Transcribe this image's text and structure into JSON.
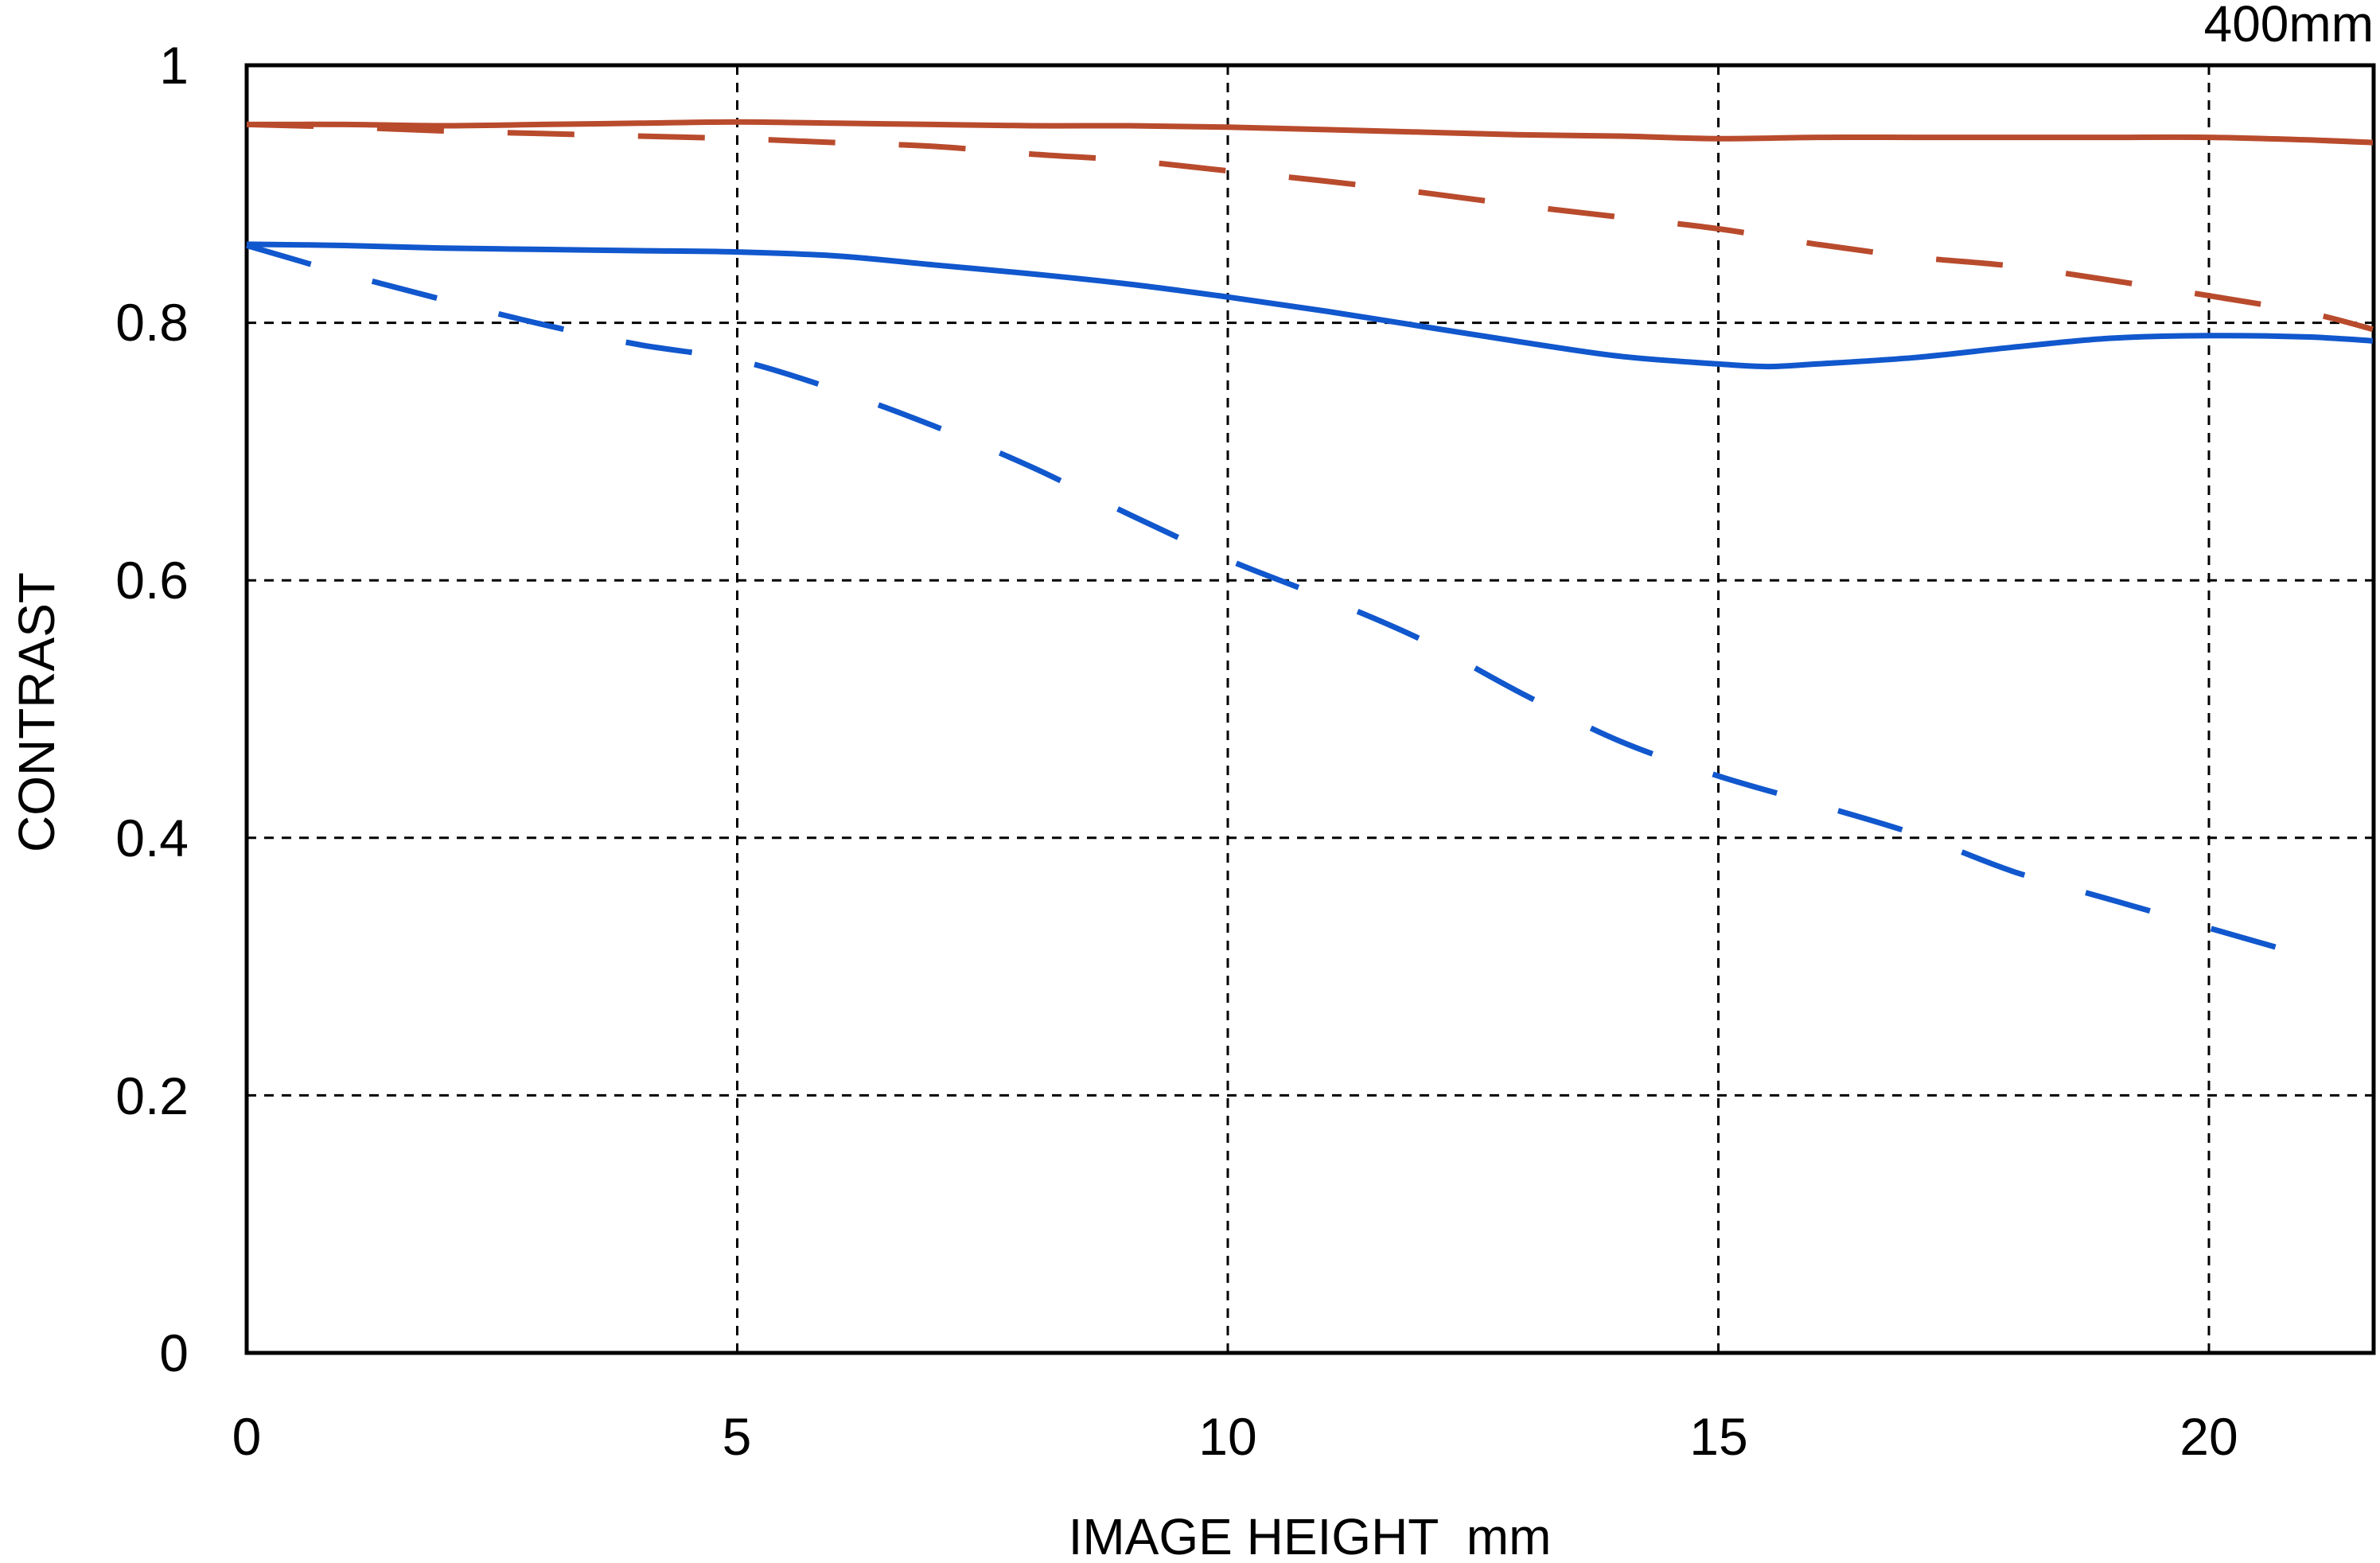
{
  "title": "400mm",
  "axes": {
    "x_label": "IMAGE HEIGHT  mm",
    "y_label": "CONTRAST",
    "x_tick_labels": [
      "0",
      "5",
      "10",
      "15",
      "20"
    ],
    "y_tick_labels": [
      "1",
      "0.8",
      "0.6",
      "0.4",
      "0.2",
      "0"
    ]
  },
  "colors": {
    "red_curve": "#b94b2d",
    "blue_curve": "#1157cd",
    "grid": "#000000",
    "frame": "#000000"
  },
  "chart_data": {
    "type": "line",
    "title": "400mm",
    "xlabel": "IMAGE HEIGHT  mm",
    "ylabel": "CONTRAST",
    "xlim": [
      0,
      21.67
    ],
    "ylim": [
      0,
      1
    ],
    "x_ticks": [
      0,
      5,
      10,
      15,
      20
    ],
    "y_ticks": [
      0,
      0.2,
      0.4,
      0.6,
      0.8,
      1
    ],
    "x_gridlines": [
      5,
      10,
      15,
      20
    ],
    "y_gridlines": [
      0.2,
      0.4,
      0.6,
      0.8
    ],
    "grid": "dashed",
    "legend": "none",
    "series": [
      {
        "id": "red-solid",
        "name": "red solid",
        "color": "#b94b2d",
        "dashed": false,
        "points": [
          [
            0,
            0.954
          ],
          [
            1,
            0.954
          ],
          [
            2,
            0.953
          ],
          [
            3,
            0.954
          ],
          [
            4,
            0.955
          ],
          [
            5,
            0.956
          ],
          [
            6,
            0.955
          ],
          [
            7,
            0.954
          ],
          [
            8,
            0.953
          ],
          [
            9,
            0.953
          ],
          [
            10,
            0.952
          ],
          [
            11,
            0.95
          ],
          [
            12,
            0.948
          ],
          [
            13,
            0.946
          ],
          [
            14,
            0.945
          ],
          [
            15,
            0.943
          ],
          [
            16,
            0.944
          ],
          [
            17,
            0.944
          ],
          [
            18,
            0.944
          ],
          [
            19,
            0.944
          ],
          [
            20,
            0.944
          ],
          [
            21,
            0.942
          ],
          [
            21.67,
            0.94
          ]
        ]
      },
      {
        "id": "red-dashed",
        "name": "red dashed",
        "color": "#b94b2d",
        "dashed": true,
        "points": [
          [
            0,
            0.954
          ],
          [
            1,
            0.952
          ],
          [
            2,
            0.949
          ],
          [
            3,
            0.947
          ],
          [
            4,
            0.945
          ],
          [
            5,
            0.943
          ],
          [
            6,
            0.94
          ],
          [
            7,
            0.937
          ],
          [
            8,
            0.931
          ],
          [
            9,
            0.926
          ],
          [
            10,
            0.918
          ],
          [
            11,
            0.91
          ],
          [
            12,
            0.901
          ],
          [
            13,
            0.891
          ],
          [
            14,
            0.882
          ],
          [
            15,
            0.873
          ],
          [
            16,
            0.861
          ],
          [
            17,
            0.851
          ],
          [
            18,
            0.844
          ],
          [
            19,
            0.833
          ],
          [
            20,
            0.821
          ],
          [
            21,
            0.808
          ],
          [
            21.67,
            0.795
          ]
        ]
      },
      {
        "id": "blue-solid",
        "name": "blue solid",
        "color": "#1157cd",
        "dashed": false,
        "points": [
          [
            0,
            0.861
          ],
          [
            1,
            0.86
          ],
          [
            2,
            0.858
          ],
          [
            3,
            0.857
          ],
          [
            4,
            0.856
          ],
          [
            5,
            0.855
          ],
          [
            6,
            0.852
          ],
          [
            7,
            0.845
          ],
          [
            8,
            0.838
          ],
          [
            9,
            0.83
          ],
          [
            10,
            0.82
          ],
          [
            11,
            0.809
          ],
          [
            12,
            0.797
          ],
          [
            13,
            0.785
          ],
          [
            14,
            0.774
          ],
          [
            15,
            0.768
          ],
          [
            15.5,
            0.766
          ],
          [
            16,
            0.768
          ],
          [
            17,
            0.773
          ],
          [
            18,
            0.781
          ],
          [
            19,
            0.788
          ],
          [
            20,
            0.79
          ],
          [
            21,
            0.789
          ],
          [
            21.67,
            0.786
          ]
        ]
      },
      {
        "id": "blue-dashed",
        "name": "blue dashed",
        "color": "#1157cd",
        "dashed": true,
        "points": [
          [
            0,
            0.86
          ],
          [
            1,
            0.838
          ],
          [
            2,
            0.818
          ],
          [
            3,
            0.799
          ],
          [
            4,
            0.783
          ],
          [
            5,
            0.771
          ],
          [
            6,
            0.748
          ],
          [
            7,
            0.72
          ],
          [
            8,
            0.688
          ],
          [
            9,
            0.651
          ],
          [
            10,
            0.616
          ],
          [
            11,
            0.586
          ],
          [
            12,
            0.553
          ],
          [
            13,
            0.512
          ],
          [
            14,
            0.475
          ],
          [
            15,
            0.448
          ],
          [
            16,
            0.426
          ],
          [
            17,
            0.403
          ],
          [
            18,
            0.374
          ],
          [
            19,
            0.352
          ],
          [
            20,
            0.33
          ],
          [
            21,
            0.308
          ],
          [
            21.15,
            0.303
          ]
        ]
      }
    ]
  }
}
